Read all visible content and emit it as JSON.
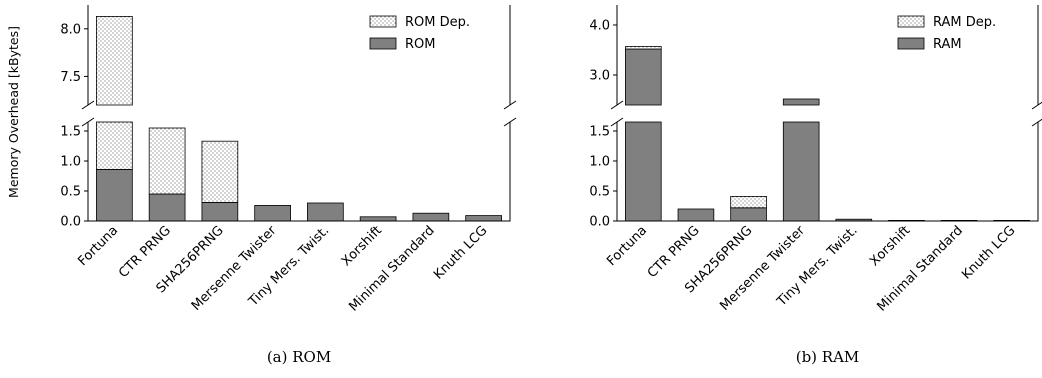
{
  "ylabel": "Memory Overhead [kBytes]",
  "chart_data": [
    {
      "type": "bar",
      "stacked": true,
      "broken_axis": true,
      "caption": "(a) ROM",
      "categories": [
        "Fortuna",
        "CTR PRNG",
        "SHA256PRNG",
        "Mersenne Twister",
        "Tiny Mers. Twist.",
        "Xorshift",
        "Minimal Standard",
        "Knuth LCG"
      ],
      "series": [
        {
          "name": "ROM",
          "values": [
            0.86,
            0.45,
            0.31,
            0.26,
            0.3,
            0.07,
            0.13,
            0.09
          ]
        },
        {
          "name": "ROM Dep.",
          "values": [
            7.27,
            1.1,
            1.02,
            0,
            0,
            0,
            0,
            0
          ]
        }
      ],
      "ylim_lower": [
        0,
        1.65
      ],
      "ylim_upper": [
        7.2,
        8.25
      ],
      "yticks_lower": [
        "0.0",
        "0.5",
        "1.0",
        "1.5"
      ],
      "yticks_upper": [
        "7.5",
        "8.0"
      ],
      "legend": "top-right",
      "colors": {
        "solid": "#808080",
        "dotted": "#ffffff",
        "edge": "#000000"
      }
    },
    {
      "type": "bar",
      "stacked": true,
      "broken_axis": true,
      "caption": "(b) RAM",
      "categories": [
        "Fortuna",
        "CTR PRNG",
        "SHA256PRNG",
        "Mersenne Twister",
        "Tiny Mers. Twist.",
        "Xorshift",
        "Minimal Standard",
        "Knuth LCG"
      ],
      "series": [
        {
          "name": "RAM",
          "values": [
            3.52,
            0.2,
            0.22,
            2.52,
            0.03,
            0.01,
            0.01,
            0.01
          ]
        },
        {
          "name": "RAM Dep.",
          "values": [
            0.05,
            0,
            0.19,
            0,
            0,
            0,
            0,
            0
          ]
        }
      ],
      "ylim_lower": [
        0,
        1.65
      ],
      "ylim_upper": [
        2.4,
        4.4
      ],
      "yticks_lower": [
        "0.0",
        "0.5",
        "1.0",
        "1.5"
      ],
      "yticks_upper": [
        "3.0",
        "4.0"
      ],
      "legend": "top-right",
      "colors": {
        "solid": "#808080",
        "dotted": "#ffffff",
        "edge": "#000000"
      }
    }
  ]
}
